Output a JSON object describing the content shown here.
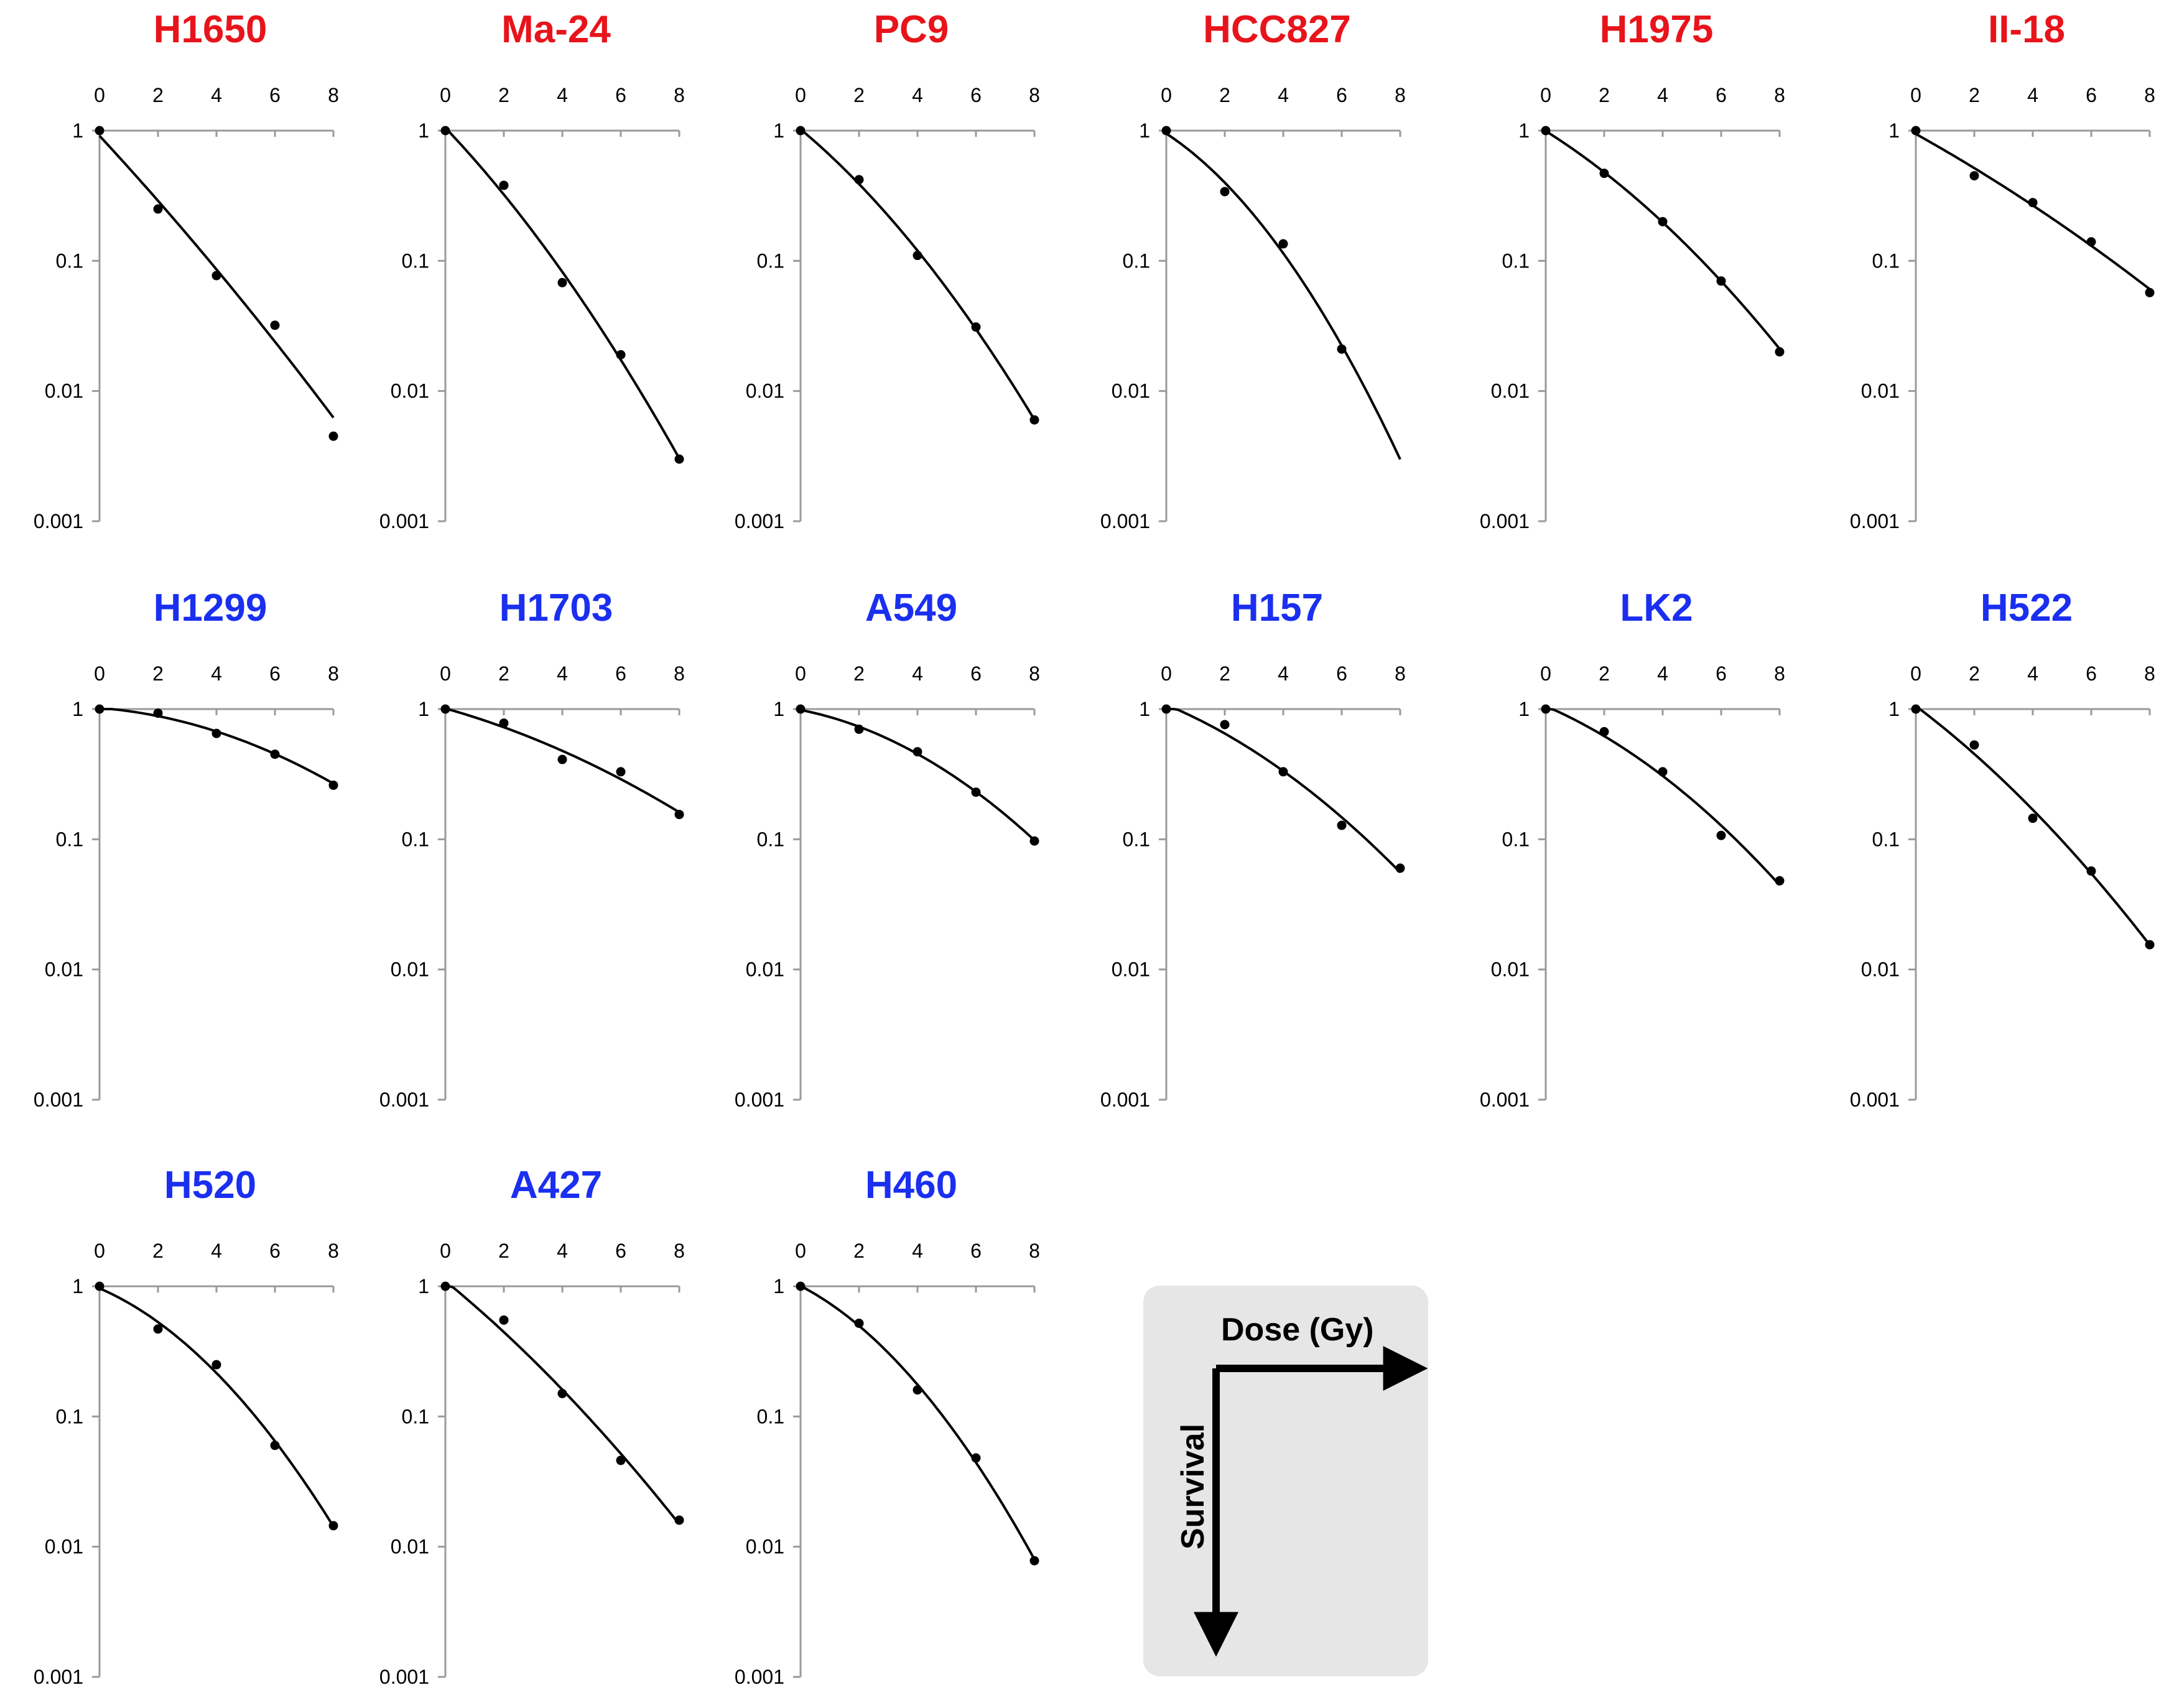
{
  "colors": {
    "sensitive": "#e8141b",
    "resistant": "#1a2ff0",
    "axis": "#9a9a9a",
    "ink": "#000000"
  },
  "legend": {
    "x_label": "Dose (Gy)",
    "y_label": "Survival"
  },
  "chart_data": [
    {
      "type": "scatter",
      "title": "H1650",
      "group": "sensitive",
      "x": [
        0,
        2,
        4,
        6,
        8
      ],
      "y": [
        1,
        0.25,
        0.077,
        0.032,
        0.0045
      ],
      "fit_end": 0.0055,
      "xticks": [
        "0",
        "2",
        "4",
        "6",
        "8"
      ],
      "yticks": [
        "1",
        "0.1",
        "0.01",
        "0.001"
      ],
      "xlim": [
        0,
        8
      ],
      "ylim": [
        0.001,
        1
      ],
      "yscale": "log",
      "xlabel": "",
      "ylabel": ""
    },
    {
      "type": "scatter",
      "title": "Ma-24",
      "group": "sensitive",
      "x": [
        0,
        2,
        4,
        6,
        8
      ],
      "y": [
        1,
        0.38,
        0.068,
        0.019,
        0.003
      ],
      "fit_end": 0.003,
      "xticks": [
        "0",
        "2",
        "4",
        "6",
        "8"
      ],
      "yticks": [
        "1",
        "0.1",
        "0.01",
        "0.001"
      ],
      "xlim": [
        0,
        8
      ],
      "ylim": [
        0.001,
        1
      ],
      "yscale": "log",
      "xlabel": "",
      "ylabel": ""
    },
    {
      "type": "scatter",
      "title": "PC9",
      "group": "sensitive",
      "x": [
        0,
        2,
        4,
        6,
        8
      ],
      "y": [
        1,
        0.42,
        0.11,
        0.031,
        0.006
      ],
      "fit_end": 0.006,
      "xticks": [
        "0",
        "2",
        "4",
        "6",
        "8"
      ],
      "yticks": [
        "1",
        "0.1",
        "0.01",
        "0.001"
      ],
      "xlim": [
        0,
        8
      ],
      "ylim": [
        0.001,
        1
      ],
      "yscale": "log",
      "xlabel": "",
      "ylabel": ""
    },
    {
      "type": "scatter",
      "title": "HCC827",
      "group": "sensitive",
      "x": [
        0,
        2,
        4,
        6
      ],
      "y": [
        1,
        0.34,
        0.135,
        0.021
      ],
      "fit_end": 0.003,
      "xticks": [
        "0",
        "2",
        "4",
        "6",
        "8"
      ],
      "yticks": [
        "1",
        "0.1",
        "0.01",
        "0.001"
      ],
      "xlim": [
        0,
        8
      ],
      "ylim": [
        0.001,
        1
      ],
      "yscale": "log",
      "xlabel": "",
      "ylabel": ""
    },
    {
      "type": "scatter",
      "title": "H1975",
      "group": "sensitive",
      "x": [
        0,
        2,
        4,
        6,
        8
      ],
      "y": [
        1,
        0.47,
        0.2,
        0.07,
        0.02
      ],
      "fit_end": 0.021,
      "xticks": [
        "0",
        "2",
        "4",
        "6",
        "8"
      ],
      "yticks": [
        "1",
        "0.1",
        "0.01",
        "0.001"
      ],
      "xlim": [
        0,
        8
      ],
      "ylim": [
        0.001,
        1
      ],
      "yscale": "log",
      "xlabel": "",
      "ylabel": ""
    },
    {
      "type": "scatter",
      "title": "II-18",
      "group": "sensitive",
      "x": [
        0,
        2,
        4,
        6,
        8
      ],
      "y": [
        1,
        0.45,
        0.28,
        0.14,
        0.057
      ],
      "fit_end": 0.058,
      "xticks": [
        "0",
        "2",
        "4",
        "6",
        "8"
      ],
      "yticks": [
        "1",
        "0.1",
        "0.01",
        "0.001"
      ],
      "xlim": [
        0,
        8
      ],
      "ylim": [
        0.001,
        1
      ],
      "yscale": "log",
      "xlabel": "",
      "ylabel": ""
    },
    {
      "type": "scatter",
      "title": "H1299",
      "group": "resistant",
      "x": [
        0,
        2,
        4,
        6,
        8
      ],
      "y": [
        1,
        0.93,
        0.65,
        0.45,
        0.26
      ],
      "fit_end": 0.27,
      "xticks": [
        "0",
        "2",
        "4",
        "6",
        "8"
      ],
      "yticks": [
        "1",
        "0.1",
        "0.01",
        "0.001"
      ],
      "xlim": [
        0,
        8
      ],
      "ylim": [
        0.001,
        1
      ],
      "yscale": "log",
      "xlabel": "",
      "ylabel": ""
    },
    {
      "type": "scatter",
      "title": "H1703",
      "group": "resistant",
      "x": [
        0,
        2,
        4,
        6,
        8
      ],
      "y": [
        1,
        0.78,
        0.41,
        0.33,
        0.155
      ],
      "fit_end": 0.155,
      "xticks": [
        "0",
        "2",
        "4",
        "6",
        "8"
      ],
      "yticks": [
        "1",
        "0.1",
        "0.01",
        "0.001"
      ],
      "xlim": [
        0,
        8
      ],
      "ylim": [
        0.001,
        1
      ],
      "yscale": "log",
      "xlabel": "",
      "ylabel": ""
    },
    {
      "type": "scatter",
      "title": "A549",
      "group": "resistant",
      "x": [
        0,
        2,
        4,
        6,
        8
      ],
      "y": [
        1,
        0.7,
        0.47,
        0.23,
        0.097
      ],
      "fit_end": 0.098,
      "xticks": [
        "0",
        "2",
        "4",
        "6",
        "8"
      ],
      "yticks": [
        "1",
        "0.1",
        "0.01",
        "0.001"
      ],
      "xlim": [
        0,
        8
      ],
      "ylim": [
        0.001,
        1
      ],
      "yscale": "log",
      "xlabel": "",
      "ylabel": ""
    },
    {
      "type": "scatter",
      "title": "H157",
      "group": "resistant",
      "x": [
        0,
        2,
        4,
        6,
        8
      ],
      "y": [
        1,
        0.76,
        0.33,
        0.128,
        0.06
      ],
      "fit_end": 0.06,
      "xticks": [
        "0",
        "2",
        "4",
        "6",
        "8"
      ],
      "yticks": [
        "1",
        "0.1",
        "0.01",
        "0.001"
      ],
      "xlim": [
        0,
        8
      ],
      "ylim": [
        0.001,
        1
      ],
      "yscale": "log",
      "xlabel": "",
      "ylabel": ""
    },
    {
      "type": "scatter",
      "title": "LK2",
      "group": "resistant",
      "x": [
        0,
        2,
        4,
        6,
        8
      ],
      "y": [
        1,
        0.67,
        0.33,
        0.107,
        0.048
      ],
      "fit_end": 0.048,
      "xticks": [
        "0",
        "2",
        "4",
        "6",
        "8"
      ],
      "yticks": [
        "1",
        "0.1",
        "0.01",
        "0.001"
      ],
      "xlim": [
        0,
        8
      ],
      "ylim": [
        0.001,
        1
      ],
      "yscale": "log",
      "xlabel": "",
      "ylabel": ""
    },
    {
      "type": "scatter",
      "title": "H522",
      "group": "resistant",
      "x": [
        0,
        2,
        4,
        6,
        8
      ],
      "y": [
        1,
        0.53,
        0.145,
        0.057,
        0.0155
      ],
      "fit_end": 0.0155,
      "xticks": [
        "0",
        "2",
        "4",
        "6",
        "8"
      ],
      "yticks": [
        "1",
        "0.1",
        "0.01",
        "0.001"
      ],
      "xlim": [
        0,
        8
      ],
      "ylim": [
        0.001,
        1
      ],
      "yscale": "log",
      "xlabel": "",
      "ylabel": ""
    },
    {
      "type": "scatter",
      "title": "H520",
      "group": "resistant",
      "x": [
        0,
        2,
        4,
        6,
        8
      ],
      "y": [
        1,
        0.47,
        0.25,
        0.06,
        0.0145
      ],
      "fit_end": 0.0145,
      "xticks": [
        "0",
        "2",
        "4",
        "6",
        "8"
      ],
      "yticks": [
        "1",
        "0.1",
        "0.01",
        "0.001"
      ],
      "xlim": [
        0,
        8
      ],
      "ylim": [
        0.001,
        1
      ],
      "yscale": "log",
      "xlabel": "",
      "ylabel": ""
    },
    {
      "type": "scatter",
      "title": "A427",
      "group": "resistant",
      "x": [
        0,
        2,
        4,
        6,
        8
      ],
      "y": [
        1,
        0.55,
        0.15,
        0.046,
        0.016
      ],
      "fit_end": 0.016,
      "xticks": [
        "0",
        "2",
        "4",
        "6",
        "8"
      ],
      "yticks": [
        "1",
        "0.1",
        "0.01",
        "0.001"
      ],
      "xlim": [
        0,
        8
      ],
      "ylim": [
        0.001,
        1
      ],
      "yscale": "log",
      "xlabel": "",
      "ylabel": ""
    },
    {
      "type": "scatter",
      "title": "H460",
      "group": "resistant",
      "x": [
        0,
        2,
        4,
        6,
        8
      ],
      "y": [
        1,
        0.52,
        0.16,
        0.048,
        0.0078
      ],
      "fit_end": 0.0078,
      "xticks": [
        "0",
        "2",
        "4",
        "6",
        "8"
      ],
      "yticks": [
        "1",
        "0.1",
        "0.01",
        "0.001"
      ],
      "xlim": [
        0,
        8
      ],
      "ylim": [
        0.001,
        1
      ],
      "yscale": "log",
      "xlabel": "",
      "ylabel": ""
    }
  ]
}
